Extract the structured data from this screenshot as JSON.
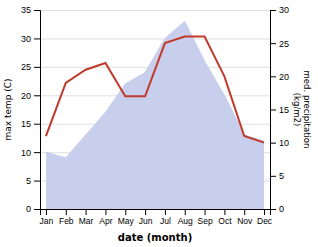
{
  "chart_data": {
    "type": "line",
    "xlabel": "date (month)",
    "ylabel": "max temp (C)",
    "y2label": "med. precipitation\n(kg/m2)",
    "categories": [
      "Jan",
      "Feb",
      "Mar",
      "Apr",
      "May",
      "Jun",
      "Jul",
      "Aug",
      "Sep",
      "Oct",
      "Nov",
      "Dec"
    ],
    "series": [
      {
        "type": "area",
        "color": "#c8cfec",
        "values": [
          10,
          9,
          13,
          17,
          22,
          24,
          30,
          33,
          26,
          20,
          13,
          12
        ]
      },
      {
        "type": "line",
        "color": "#c0392b",
        "axis": "y2",
        "values": [
          11,
          19,
          21,
          22,
          17,
          17,
          25,
          26,
          26,
          20,
          11,
          10
        ]
      }
    ],
    "ylim": [
      0,
      35
    ],
    "yticks": [
      0,
      5,
      10,
      15,
      20,
      25,
      30,
      35
    ],
    "y2lim": [
      0,
      30
    ],
    "y2ticks": [
      0,
      5,
      10,
      15,
      20,
      25,
      30
    ],
    "grid": true
  }
}
